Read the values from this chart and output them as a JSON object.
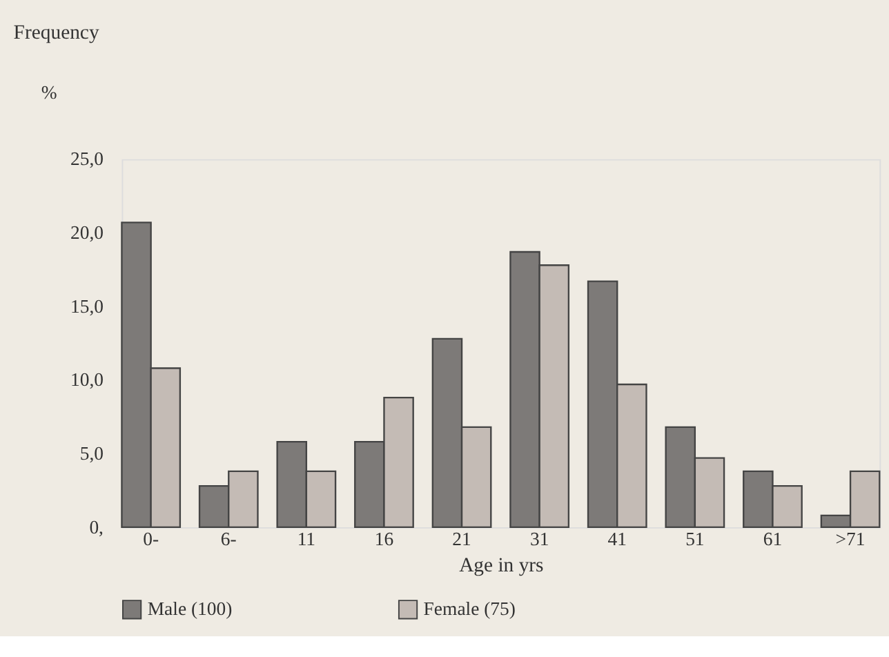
{
  "chart_data": {
    "type": "bar",
    "title": "Frequency",
    "ylabel": "%",
    "xlabel": "Age in yrs",
    "categories": [
      "0-",
      "6-",
      "11",
      "16",
      "21",
      "31",
      "41",
      "51",
      "61",
      ">71"
    ],
    "series": [
      {
        "name": "Male (100)",
        "color": "#7d7a78",
        "values": [
          20.7,
          2.8,
          5.8,
          5.8,
          12.8,
          18.7,
          16.7,
          6.8,
          3.8,
          0.8
        ]
      },
      {
        "name": "Female (75)",
        "color": "#c4bbb5",
        "values": [
          10.8,
          3.8,
          3.8,
          8.8,
          6.8,
          17.8,
          9.7,
          4.7,
          2.8,
          3.8
        ]
      }
    ],
    "ylim": [
      0,
      25
    ],
    "yticks": [
      {
        "value": 0,
        "label": "0,"
      },
      {
        "value": 5,
        "label": "5,0"
      },
      {
        "value": 10,
        "label": "10,0"
      },
      {
        "value": 15,
        "label": "15,0"
      },
      {
        "value": 20,
        "label": "20,0"
      },
      {
        "value": 25,
        "label": "25,0"
      }
    ],
    "grid": false,
    "legend": "bottom"
  }
}
